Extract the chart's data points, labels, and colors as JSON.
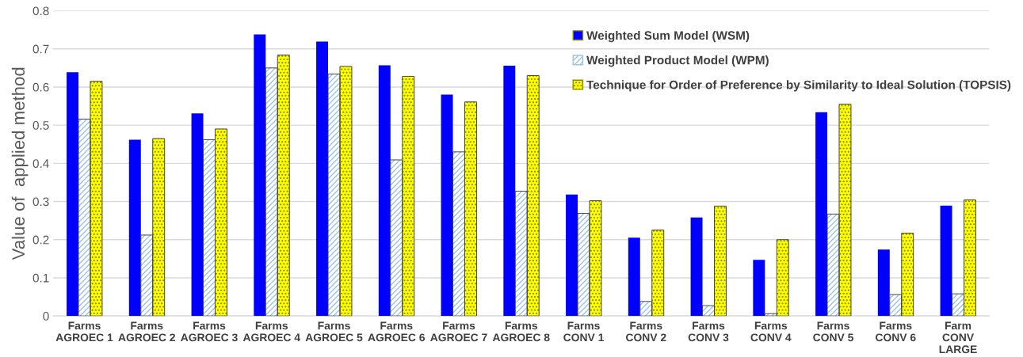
{
  "chart_data": {
    "type": "bar",
    "ylabel": "Value of  applied method",
    "categories": [
      "Farms\nAGROEC 1",
      "Farms\nAGROEC 2",
      "Farms\nAGROEC 3",
      "Farms\nAGROEC 4",
      "Farms\nAGROEC 5",
      "Farms\nAGROEC 6",
      "Farms\nAGROEC 7",
      "Farms\nAGROEC 8",
      "Farms\nCONV 1",
      "Farms\nCONV 2",
      "Farms\nCONV 3",
      "Farms\nCONV 4",
      "Farms\nCONV 5",
      "Farms\nCONV 6",
      "Farm\nCONV\nLARGE"
    ],
    "series": [
      {
        "name": "Weighted Sum Model (WSM)",
        "color": "#0000ff",
        "values": [
          0.639,
          0.462,
          0.531,
          0.738,
          0.719,
          0.657,
          0.58,
          0.656,
          0.318,
          0.205,
          0.258,
          0.147,
          0.534,
          0.174,
          0.289
        ]
      },
      {
        "name": "Weighted Product Model (WPM)",
        "color": "#9dc3e6",
        "values": [
          0.516,
          0.212,
          0.462,
          0.65,
          0.634,
          0.409,
          0.43,
          0.327,
          0.269,
          0.038,
          0.027,
          0.006,
          0.267,
          0.056,
          0.058
        ]
      },
      {
        "name": "Technique for Order of Preference by Similarity to Ideal Solution (TOPSIS)",
        "color": "#ffff00",
        "values": [
          0.615,
          0.465,
          0.49,
          0.684,
          0.654,
          0.628,
          0.561,
          0.63,
          0.302,
          0.225,
          0.288,
          0.2,
          0.555,
          0.217,
          0.304
        ]
      }
    ],
    "ylim": [
      0,
      0.8
    ],
    "yticks": [
      {
        "value": 0,
        "label": "0"
      },
      0.1,
      0.2,
      0.3,
      0.4,
      0.5,
      0.6,
      0.7,
      0.8
    ],
    "grid": "y",
    "legend": "top right"
  }
}
